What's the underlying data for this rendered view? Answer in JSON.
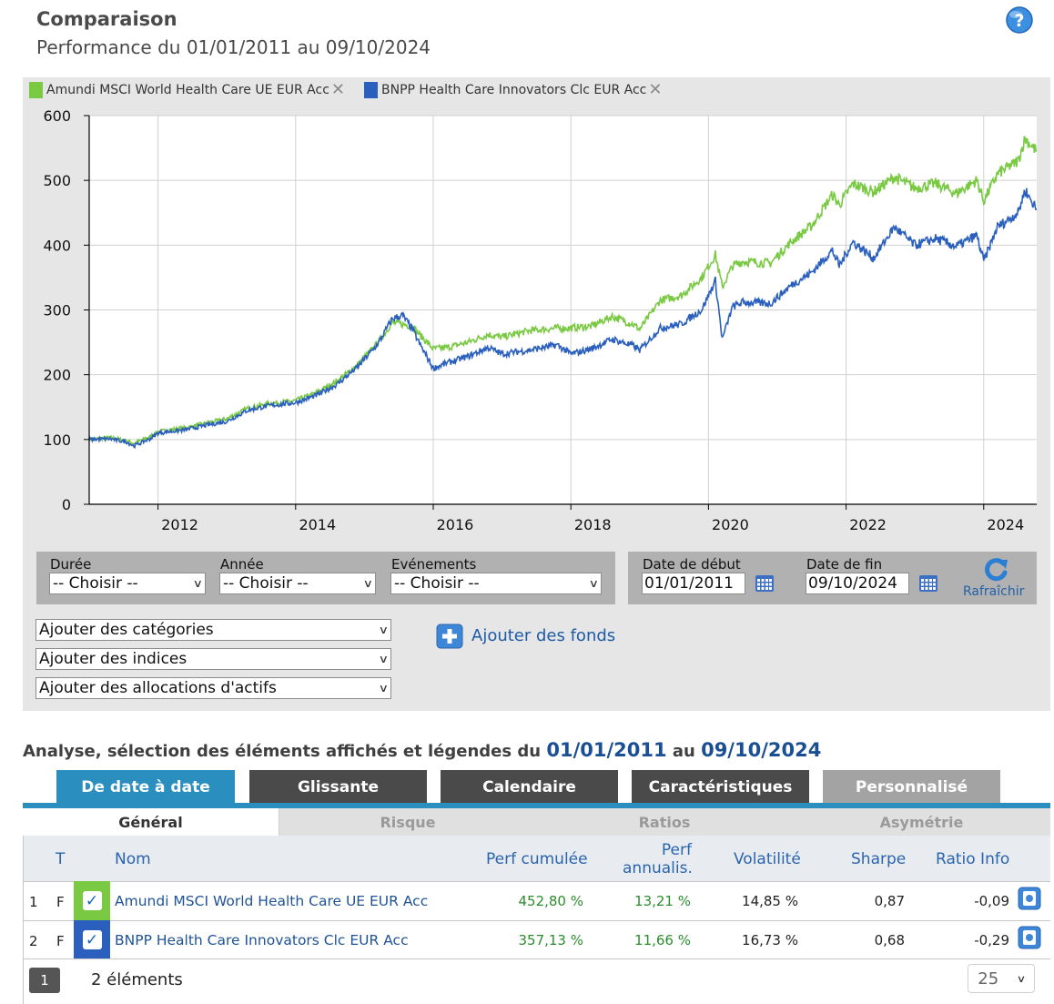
{
  "header": {
    "title": "Comparaison",
    "subtitle": "Performance du 01/01/2011 au 09/10/2024",
    "help_icon": "question-mark-icon"
  },
  "legend": [
    {
      "label": "Amundi MSCI World Health Care UE EUR Acc",
      "color": "#7ac943"
    },
    {
      "label": "BNPP Health Care Innovators Clc EUR Acc",
      "color": "#2a5fbd"
    }
  ],
  "chart_data": {
    "type": "line",
    "y_ticks": [
      "0",
      "100",
      "200",
      "300",
      "400",
      "500",
      "600"
    ],
    "x_ticks": [
      "2012",
      "2014",
      "2016",
      "2018",
      "2020",
      "2022",
      "2024"
    ],
    "ylim": [
      0,
      600
    ],
    "xlim": [
      2011.0,
      2024.77
    ],
    "grid": true,
    "series": [
      {
        "name": "Amundi MSCI World Health Care UE EUR Acc",
        "color": "#7ac943",
        "x": [
          2011.0,
          2011.3,
          2011.55,
          2011.65,
          2011.9,
          2012.0,
          2012.4,
          2012.7,
          2013.0,
          2013.3,
          2013.6,
          2014.0,
          2014.3,
          2014.6,
          2014.9,
          2015.2,
          2015.4,
          2015.55,
          2015.7,
          2015.8,
          2016.0,
          2016.2,
          2016.5,
          2016.8,
          2017.0,
          2017.4,
          2017.8,
          2018.0,
          2018.3,
          2018.6,
          2018.9,
          2019.0,
          2019.3,
          2019.6,
          2019.9,
          2020.1,
          2020.2,
          2020.35,
          2020.5,
          2020.9,
          2021.2,
          2021.5,
          2021.8,
          2021.9,
          2022.1,
          2022.4,
          2022.7,
          2023.0,
          2023.3,
          2023.6,
          2023.9,
          2024.0,
          2024.2,
          2024.5,
          2024.6,
          2024.77
        ],
        "values": [
          100,
          103,
          98,
          94,
          105,
          112,
          118,
          125,
          132,
          148,
          155,
          160,
          172,
          190,
          215,
          250,
          280,
          278,
          275,
          262,
          240,
          242,
          250,
          262,
          258,
          268,
          272,
          272,
          275,
          290,
          278,
          270,
          315,
          322,
          350,
          385,
          335,
          368,
          375,
          372,
          405,
          430,
          478,
          462,
          495,
          482,
          505,
          488,
          495,
          480,
          500,
          468,
          510,
          530,
          565,
          545
        ]
      },
      {
        "name": "BNPP Health Care Innovators Clc EUR Acc",
        "color": "#2a5fbd",
        "x": [
          2011.0,
          2011.3,
          2011.55,
          2011.65,
          2011.9,
          2012.0,
          2012.4,
          2012.7,
          2013.0,
          2013.3,
          2013.6,
          2014.0,
          2014.3,
          2014.6,
          2014.9,
          2015.2,
          2015.4,
          2015.55,
          2015.7,
          2015.8,
          2016.0,
          2016.2,
          2016.5,
          2016.8,
          2017.0,
          2017.4,
          2017.8,
          2018.0,
          2018.3,
          2018.6,
          2018.9,
          2019.0,
          2019.3,
          2019.6,
          2019.9,
          2020.1,
          2020.2,
          2020.35,
          2020.5,
          2020.9,
          2021.2,
          2021.5,
          2021.8,
          2021.9,
          2022.1,
          2022.4,
          2022.7,
          2023.0,
          2023.3,
          2023.6,
          2023.9,
          2024.0,
          2024.2,
          2024.5,
          2024.6,
          2024.77
        ],
        "values": [
          100,
          101,
          96,
          90,
          102,
          110,
          115,
          122,
          128,
          145,
          152,
          157,
          168,
          185,
          212,
          248,
          286,
          292,
          270,
          248,
          210,
          218,
          228,
          242,
          232,
          238,
          246,
          232,
          240,
          255,
          245,
          238,
          272,
          278,
          300,
          345,
          255,
          305,
          312,
          310,
          338,
          358,
          392,
          368,
          405,
          380,
          428,
          400,
          410,
          398,
          415,
          375,
          428,
          450,
          485,
          455
        ]
      }
    ]
  },
  "filters": {
    "duree": {
      "label": "Durée",
      "value": "-- Choisir --"
    },
    "annee": {
      "label": "Année",
      "value": "-- Choisir --"
    },
    "evenements": {
      "label": "Evénements",
      "value": "-- Choisir --"
    },
    "date_debut": {
      "label": "Date de début",
      "value": "01/01/2011"
    },
    "date_fin": {
      "label": "Date de fin",
      "value": "09/10/2024"
    },
    "refresh_label": "Rafraîchir"
  },
  "add_selects": [
    "Ajouter des catégories",
    "Ajouter des indices",
    "Ajouter des allocations d'actifs"
  ],
  "add_fonds_label": "Ajouter des fonds",
  "analyse": {
    "prefix": "Analyse, sélection des éléments affichés et légendes du ",
    "date_from": "01/01/2011",
    "middle": " au ",
    "date_to": "09/10/2024"
  },
  "tabs": [
    {
      "label": "De date à date",
      "color": "#2a8fbe"
    },
    {
      "label": "Glissante",
      "color": "#4a4a4a"
    },
    {
      "label": "Calendaire",
      "color": "#4a4a4a"
    },
    {
      "label": "Caractéristiques",
      "color": "#4a4a4a"
    },
    {
      "label": "Personnalisé",
      "color": "#a3a3a3"
    }
  ],
  "subtabs": [
    "Général",
    "Risque",
    "Ratios",
    "Asymétrie"
  ],
  "table": {
    "headers": {
      "t": "T",
      "nom": "Nom",
      "perf_cumulee": "Perf cumulée",
      "perf_annualis_1": "Perf",
      "perf_annualis_2": "annualis.",
      "volatilite": "Volatilité",
      "sharpe": "Sharpe",
      "ratio_info": "Ratio Info"
    },
    "rows": [
      {
        "num": "1",
        "type": "F",
        "color": "#7ac943",
        "nom": "Amundi MSCI World Health Care UE EUR Acc",
        "perf_cumulee": "452,80 %",
        "perf_annualis": "13,21 %",
        "volatilite": "14,85 %",
        "sharpe": "0,87",
        "ratio_info": "-0,09"
      },
      {
        "num": "2",
        "type": "F",
        "color": "#2a5fbd",
        "nom": "BNPP Health Care Innovators Clc EUR Acc",
        "perf_cumulee": "357,13 %",
        "perf_annualis": "11,66 %",
        "volatilite": "16,73 %",
        "sharpe": "0,68",
        "ratio_info": "-0,29"
      }
    ]
  },
  "pagination": {
    "page": "1",
    "count_label": "2 éléments",
    "page_size": "25"
  }
}
